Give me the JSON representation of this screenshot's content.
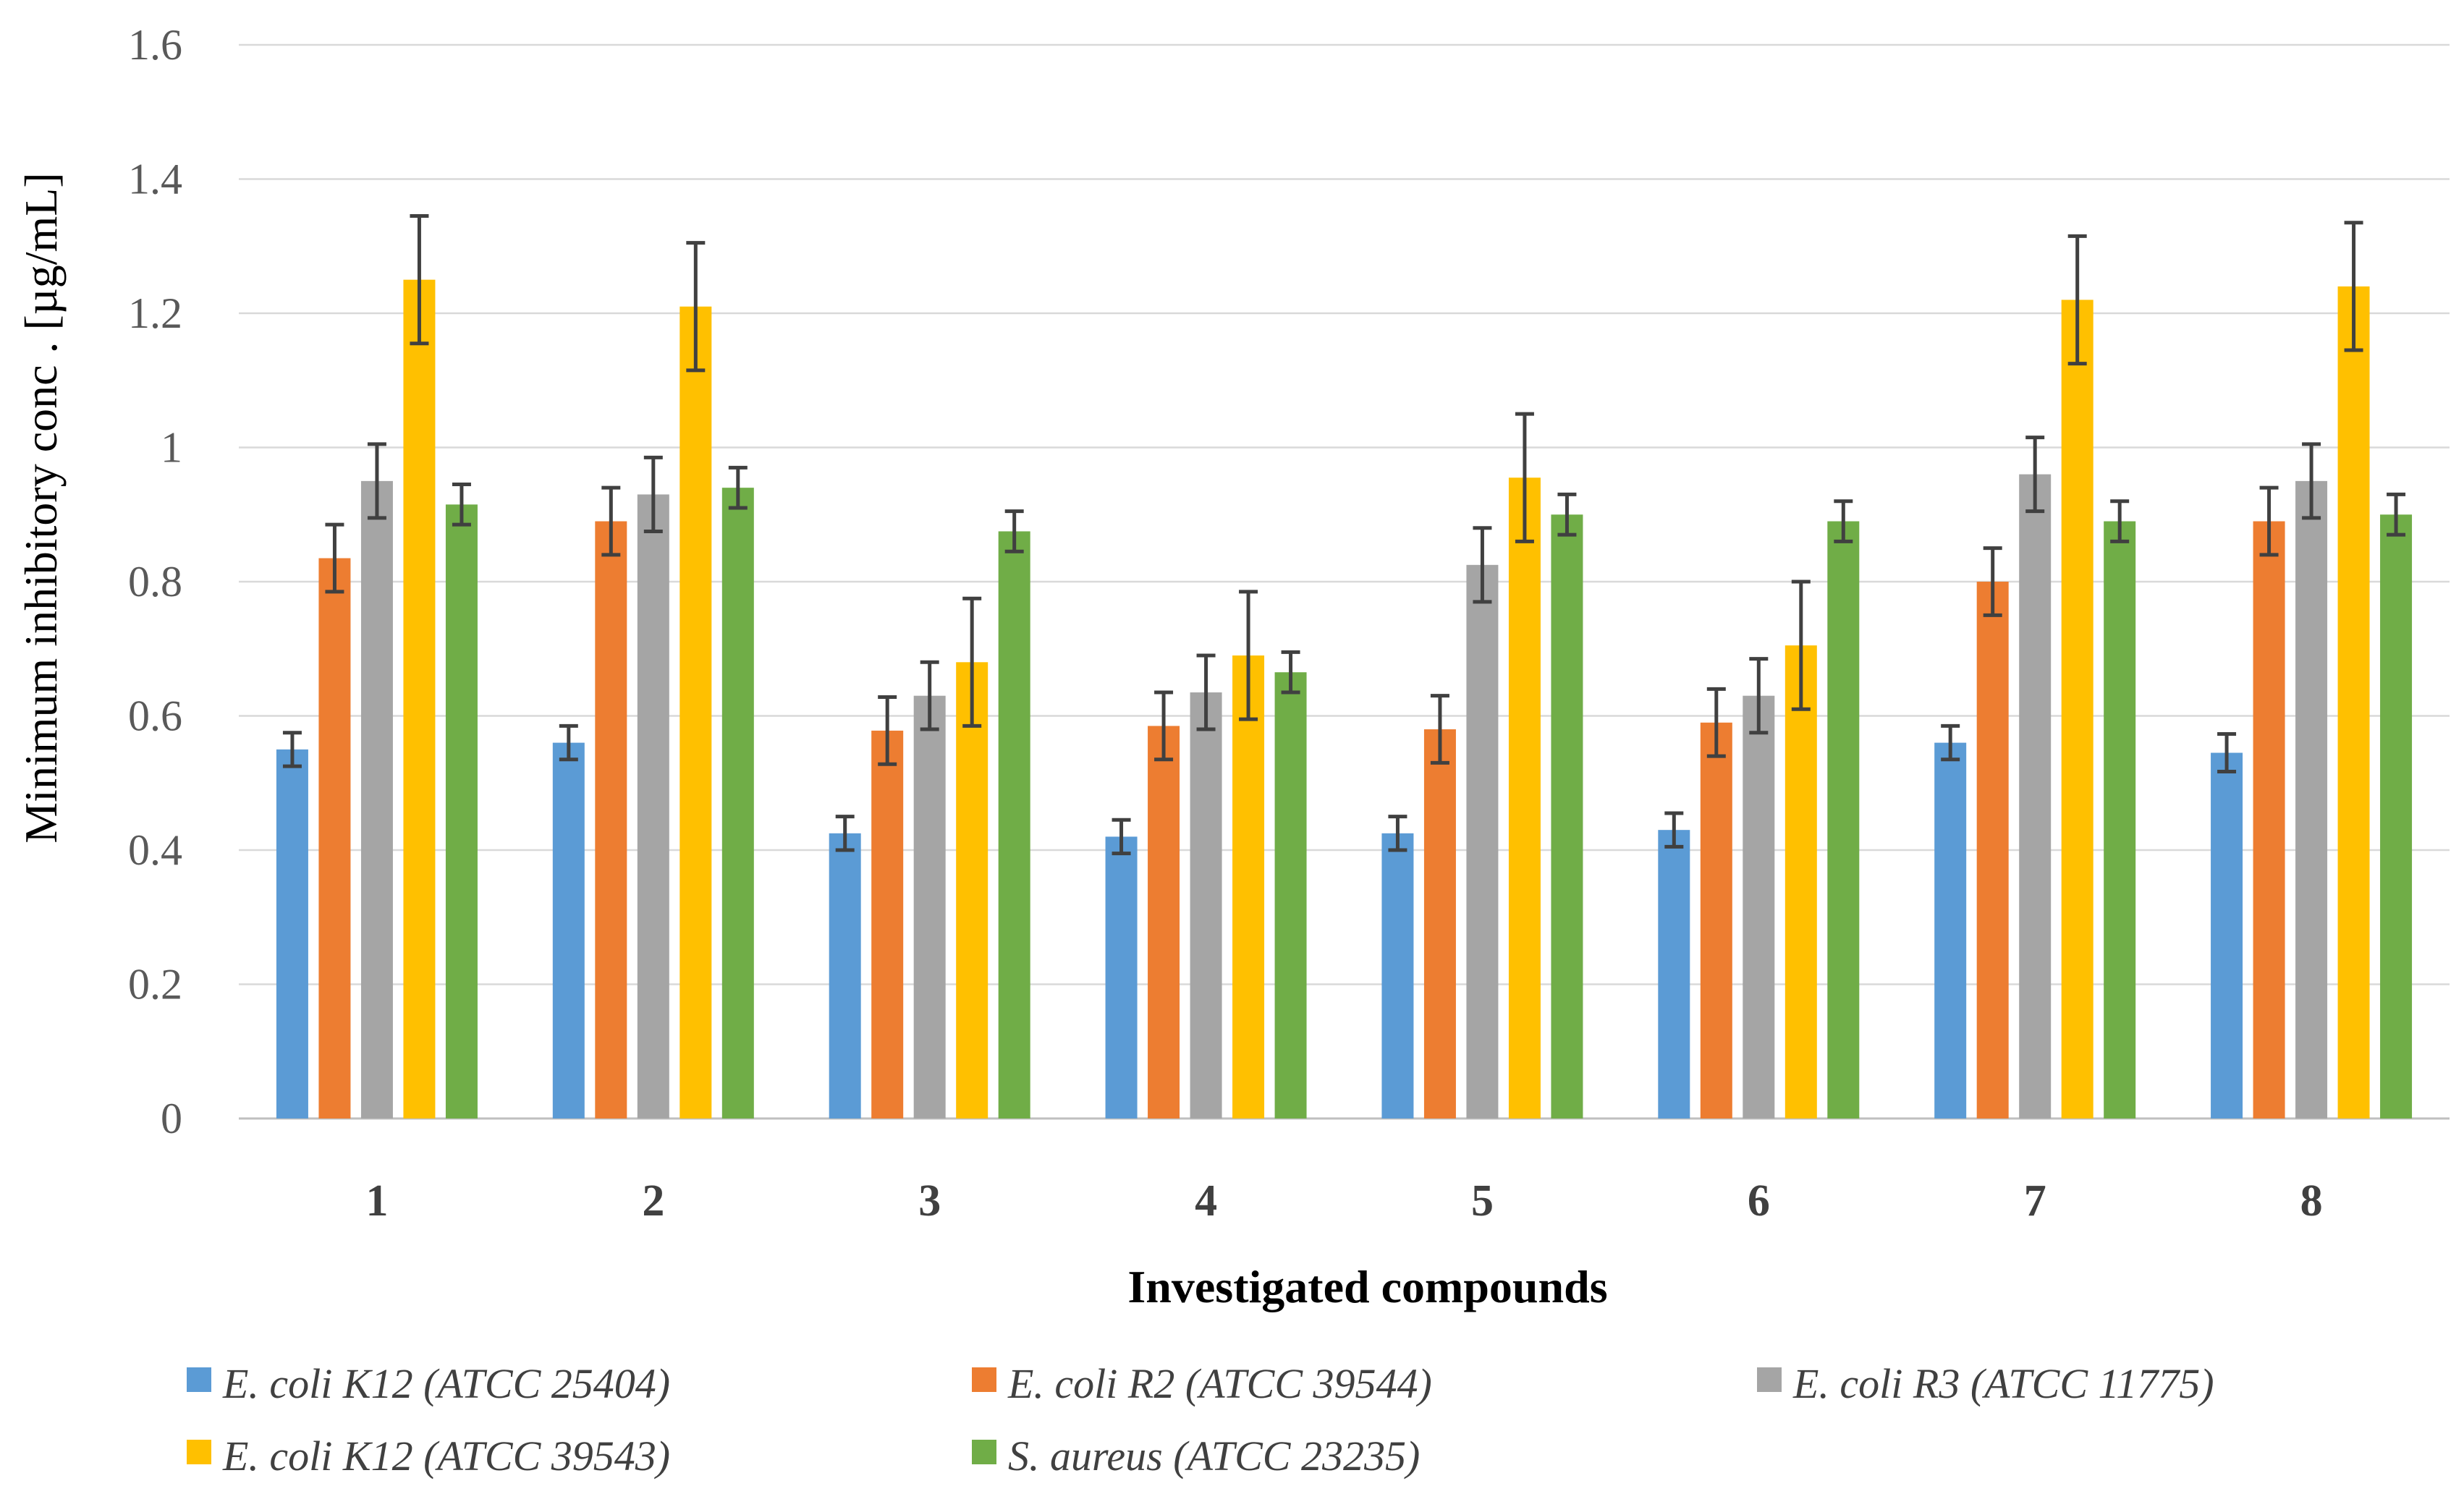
{
  "chart_data": {
    "type": "bar",
    "title": "",
    "xlabel": "Investigated compounds",
    "ylabel": "Minimum inhibitory conc . [µg/mL]",
    "ylim": [
      0,
      1.6
    ],
    "yticks": [
      "0",
      "0.2",
      "0.4",
      "0.6",
      "0.8",
      "1",
      "1.2",
      "1.4",
      "1.6"
    ],
    "grid": true,
    "legend_position": "bottom",
    "categories": [
      "1",
      "2",
      "3",
      "4",
      "5",
      "6",
      "7",
      "8"
    ],
    "series": [
      {
        "name": "E. coli K12 (ATCC 25404)",
        "color": "#5B9BD5",
        "values": [
          0.55,
          0.56,
          0.425,
          0.42,
          0.425,
          0.43,
          0.56,
          0.545
        ],
        "errors": [
          0.025,
          0.025,
          0.025,
          0.025,
          0.025,
          0.025,
          0.025,
          0.028
        ]
      },
      {
        "name": "E. coli R2 (ATCC 39544)",
        "color": "#ED7D31",
        "values": [
          0.835,
          0.89,
          0.578,
          0.585,
          0.58,
          0.59,
          0.8,
          0.89
        ],
        "errors": [
          0.05,
          0.05,
          0.05,
          0.05,
          0.05,
          0.05,
          0.05,
          0.05
        ]
      },
      {
        "name": "E. coli R3 (ATCC 11775)",
        "color": "#A5A5A5",
        "values": [
          0.95,
          0.93,
          0.63,
          0.635,
          0.825,
          0.63,
          0.96,
          0.95
        ],
        "errors": [
          0.055,
          0.055,
          0.05,
          0.055,
          0.055,
          0.055,
          0.055,
          0.055
        ]
      },
      {
        "name": "E. coli K12 (ATCC 39543)",
        "color": "#FFC000",
        "values": [
          1.25,
          1.21,
          0.68,
          0.69,
          0.955,
          0.705,
          1.22,
          1.24
        ],
        "errors": [
          0.095,
          0.095,
          0.095,
          0.095,
          0.095,
          0.095,
          0.095,
          0.095
        ]
      },
      {
        "name": "S. aureus (ATCC 23235)",
        "color": "#70AD47",
        "values": [
          0.915,
          0.94,
          0.875,
          0.665,
          0.9,
          0.89,
          0.89,
          0.9
        ],
        "errors": [
          0.03,
          0.03,
          0.03,
          0.03,
          0.03,
          0.03,
          0.03,
          0.03
        ]
      }
    ]
  },
  "colors": {
    "grid": "#D9D9D9",
    "error_bar": "#404040"
  }
}
